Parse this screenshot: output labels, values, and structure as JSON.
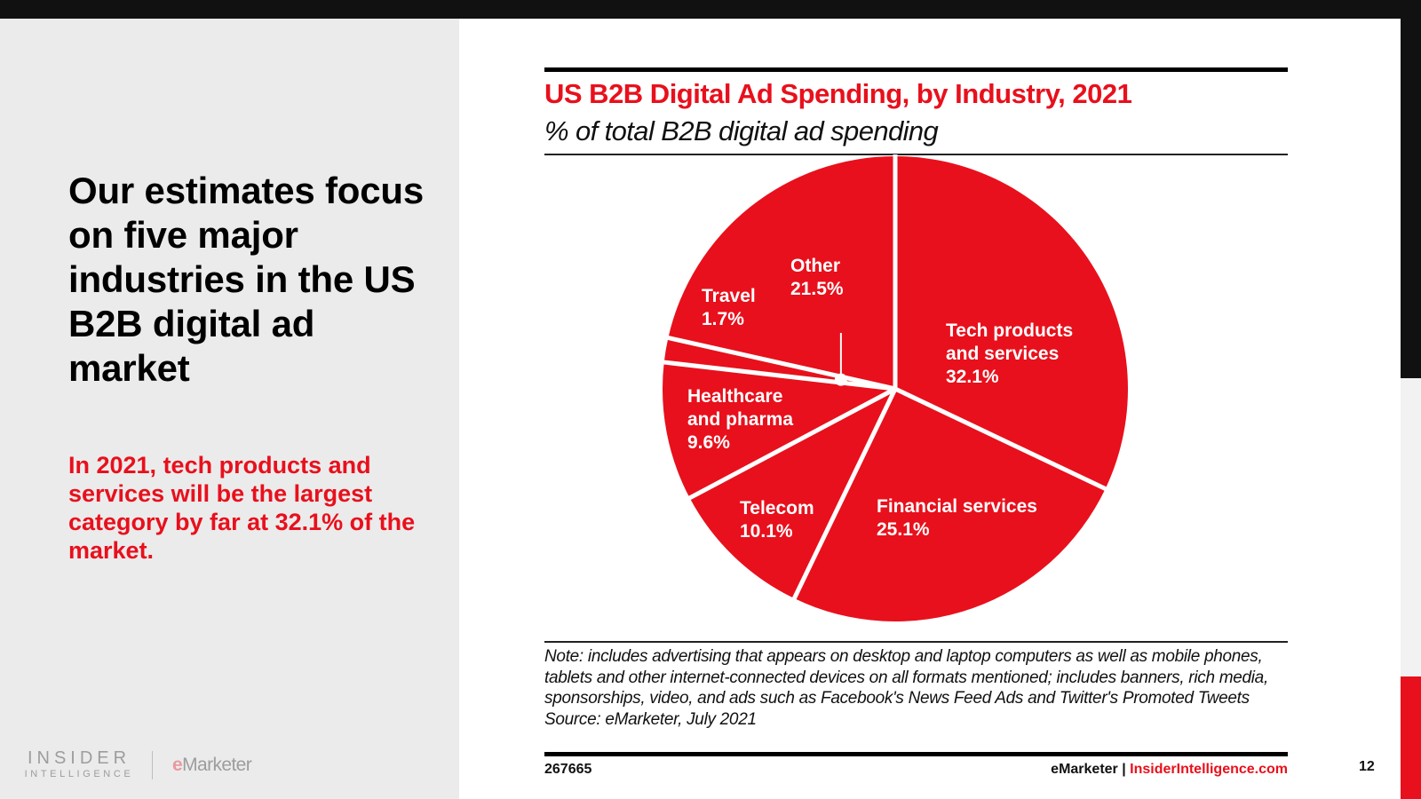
{
  "slide": {
    "headline": "Our estimates focus on five major industries in the US B2B digital ad market",
    "subline": "In 2021, tech products and services will be the largest category by far at 32.1% of the market.",
    "logos": {
      "insider_line1": "INSIDER",
      "insider_line2": "INTELLIGENCE",
      "emarketer_e": "e",
      "emarketer_rest": "Marketer"
    },
    "page_number": "12"
  },
  "chart_data": {
    "type": "pie",
    "title": "US B2B Digital Ad Spending, by Industry, 2021",
    "subtitle": "% of total B2B digital ad spending",
    "unit": "%",
    "start_angle_deg": 0,
    "direction": "clockwise",
    "slices": [
      {
        "label_lines": [
          "Tech products",
          "and services"
        ],
        "label": "Tech products and services",
        "value": 32.1,
        "value_text": "32.1%"
      },
      {
        "label_lines": [
          "Financial services"
        ],
        "label": "Financial services",
        "value": 25.1,
        "value_text": "25.1%"
      },
      {
        "label_lines": [
          "Telecom"
        ],
        "label": "Telecom",
        "value": 10.1,
        "value_text": "10.1%"
      },
      {
        "label_lines": [
          "Healthcare",
          "and pharma"
        ],
        "label": "Healthcare and pharma",
        "value": 9.6,
        "value_text": "9.6%"
      },
      {
        "label_lines": [
          "Travel"
        ],
        "label": "Travel",
        "value": 1.7,
        "value_text": "1.7%",
        "callout": true
      },
      {
        "label_lines": [
          "Other"
        ],
        "label": "Other",
        "value": 21.5,
        "value_text": "21.5%"
      }
    ],
    "colors": {
      "slice": "#e8101c",
      "separator": "#ffffff",
      "label": "#ffffff"
    },
    "note": "Note: includes advertising that appears on desktop and laptop computers as well as mobile phones, tablets and other internet-connected devices on all formats mentioned; includes banners, rich media, sponsorships, video, and ads such as Facebook's News Feed Ads and Twitter's Promoted Tweets",
    "source": "Source: eMarketer, July 2021",
    "chart_id": "267665",
    "footer_brand": "eMarketer",
    "footer_separator": "|",
    "footer_site": "InsiderIntelligence.com"
  },
  "colors": {
    "accent": "#e8101c",
    "panel": "#ebebeb",
    "frame": "#111111"
  }
}
